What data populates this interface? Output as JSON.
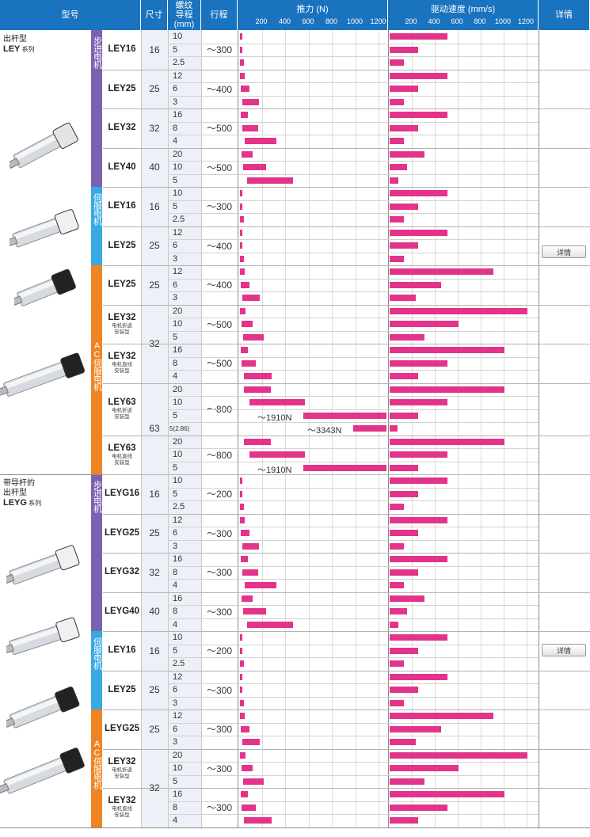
{
  "header": {
    "model": "型号",
    "size": "尺寸",
    "lead": "螺纹\n导程\n(mm)",
    "stroke": "行程",
    "force": "推力 (N)",
    "speed": "驱动速度 (mm/s)",
    "detail": "详情",
    "force_ticks": [
      "200",
      "400",
      "600",
      "800",
      "1000",
      "1200"
    ],
    "speed_ticks": [
      "200",
      "400",
      "600",
      "800",
      "1000",
      "1200"
    ]
  },
  "series": [
    {
      "name_line1": "出杆型",
      "name_line2": "LEY",
      "name_suffix": "系列"
    },
    {
      "name_line1": "带导杆的",
      "name_line1b": "出杆型",
      "name_line2": "LEYG",
      "name_suffix": "系列"
    }
  ],
  "bands": [
    "步进电机",
    "伺服电机",
    "AC伺服电机",
    "步进电机",
    "伺服电机",
    "AC伺服电机"
  ],
  "detail_button": "详情",
  "colors": {
    "header": "#1a73bf",
    "stepper": "#7b62b1",
    "servo": "#38a9e2",
    "ac_servo": "#ef8423",
    "bar": "#e3338a"
  },
  "groups": [
    {
      "model": "LEY16",
      "sub": "",
      "size": "16",
      "stroke": "~300",
      "rows": [
        {
          "lead": "10",
          "force": 15,
          "speed": 500
        },
        {
          "lead": "5",
          "force": 30,
          "speed": 250
        },
        {
          "lead": "2.5",
          "force": 60,
          "speed": 125
        }
      ]
    },
    {
      "model": "LEY25",
      "sub": "",
      "size": "25",
      "stroke": "~400",
      "rows": [
        {
          "lead": "12",
          "force": 65,
          "speed": 500
        },
        {
          "lead": "6",
          "force": 125,
          "speed": 250
        },
        {
          "lead": "3",
          "force": 240,
          "speed": 125
        }
      ]
    },
    {
      "model": "LEY32",
      "sub": "",
      "size": "32",
      "stroke": "~500",
      "rows": [
        {
          "lead": "16",
          "force": 110,
          "speed": 500
        },
        {
          "lead": "8",
          "force": 230,
          "speed": 250
        },
        {
          "lead": "4",
          "force": 460,
          "speed": 125
        }
      ]
    },
    {
      "model": "LEY40",
      "sub": "",
      "size": "40",
      "stroke": "~500",
      "rows": [
        {
          "lead": "20",
          "force": 165,
          "speed": 300
        },
        {
          "lead": "10",
          "force": 330,
          "speed": 150
        },
        {
          "lead": "5",
          "force": 660,
          "speed": 75
        }
      ]
    },
    {
      "model": "LEY16",
      "sub": "",
      "size": "16",
      "stroke": "~300",
      "rows": [
        {
          "lead": "10",
          "force": 15,
          "speed": 500
        },
        {
          "lead": "5",
          "force": 30,
          "speed": 250
        },
        {
          "lead": "2.5",
          "force": 60,
          "speed": 125
        }
      ]
    },
    {
      "model": "LEY25",
      "sub": "",
      "size": "25",
      "stroke": "~400",
      "rows": [
        {
          "lead": "12",
          "force": 15,
          "speed": 500
        },
        {
          "lead": "6",
          "force": 30,
          "speed": 250
        },
        {
          "lead": "3",
          "force": 60,
          "speed": 125
        }
      ]
    },
    {
      "model": "LEY25",
      "sub": "",
      "size": "25",
      "stroke": "~400",
      "rows": [
        {
          "lead": "12",
          "force": 65,
          "speed": 900
        },
        {
          "lead": "6",
          "force": 130,
          "speed": 450
        },
        {
          "lead": "3",
          "force": 250,
          "speed": 225
        }
      ]
    },
    {
      "model": "LEY32",
      "sub": "电机折返\n安装型",
      "size": "32",
      "stroke": "~500",
      "rows": [
        {
          "lead": "20",
          "force": 80,
          "speed": 1200
        },
        {
          "lead": "10",
          "force": 160,
          "speed": 600
        },
        {
          "lead": "5",
          "force": 300,
          "speed": 300
        }
      ]
    },
    {
      "model": "LEY32",
      "sub": "电机直线\n安装型",
      "size": "",
      "stroke": "~500",
      "rows": [
        {
          "lead": "16",
          "force": 110,
          "speed": 1000
        },
        {
          "lead": "8",
          "force": 200,
          "speed": 500
        },
        {
          "lead": "4",
          "force": 400,
          "speed": 250
        }
      ]
    },
    {
      "model": "LEY63",
      "sub": "电机折返\n安装型",
      "size": "63",
      "stroke": "~800",
      "rows": [
        {
          "lead": "20",
          "force": 390,
          "speed": 1000
        },
        {
          "lead": "10",
          "force": 800,
          "speed": 500
        },
        {
          "lead": "5",
          "force": 1910,
          "speed": 250,
          "note": "~1910N"
        },
        {
          "lead": "5(2.86)",
          "force": 3343,
          "speed": 70,
          "note": "~3343N"
        }
      ]
    },
    {
      "model": "LEY63",
      "sub": "电机直线\n安装型",
      "size": "",
      "stroke": "~800",
      "rows": [
        {
          "lead": "20",
          "force": 390,
          "speed": 1000
        },
        {
          "lead": "10",
          "force": 800,
          "speed": 500
        },
        {
          "lead": "5",
          "force": 1910,
          "speed": 250,
          "note": "~1910N"
        }
      ]
    },
    {
      "model": "LEYG16",
      "sub": "",
      "size": "16",
      "stroke": "~200",
      "rows": [
        {
          "lead": "10",
          "force": 15,
          "speed": 500
        },
        {
          "lead": "5",
          "force": 30,
          "speed": 250
        },
        {
          "lead": "2.5",
          "force": 60,
          "speed": 125
        }
      ]
    },
    {
      "model": "LEYG25",
      "sub": "",
      "size": "25",
      "stroke": "~300",
      "rows": [
        {
          "lead": "12",
          "force": 65,
          "speed": 500
        },
        {
          "lead": "6",
          "force": 125,
          "speed": 250
        },
        {
          "lead": "3",
          "force": 240,
          "speed": 125
        }
      ]
    },
    {
      "model": "LEYG32",
      "sub": "",
      "size": "32",
      "stroke": "~300",
      "rows": [
        {
          "lead": "16",
          "force": 110,
          "speed": 500
        },
        {
          "lead": "8",
          "force": 230,
          "speed": 250
        },
        {
          "lead": "4",
          "force": 460,
          "speed": 125
        }
      ]
    },
    {
      "model": "LEYG40",
      "sub": "",
      "size": "40",
      "stroke": "~300",
      "rows": [
        {
          "lead": "16",
          "force": 165,
          "speed": 300
        },
        {
          "lead": "8",
          "force": 330,
          "speed": 150
        },
        {
          "lead": "4",
          "force": 660,
          "speed": 75
        }
      ]
    },
    {
      "model": "LEY16",
      "sub": "",
      "size": "16",
      "stroke": "~200",
      "rows": [
        {
          "lead": "10",
          "force": 15,
          "speed": 500
        },
        {
          "lead": "5",
          "force": 30,
          "speed": 250
        },
        {
          "lead": "2.5",
          "force": 60,
          "speed": 125
        }
      ]
    },
    {
      "model": "LEY25",
      "sub": "",
      "size": "25",
      "stroke": "~300",
      "rows": [
        {
          "lead": "12",
          "force": 15,
          "speed": 500
        },
        {
          "lead": "6",
          "force": 30,
          "speed": 250
        },
        {
          "lead": "3",
          "force": 60,
          "speed": 125
        }
      ]
    },
    {
      "model": "LEYG25",
      "sub": "",
      "size": "25",
      "stroke": "~300",
      "rows": [
        {
          "lead": "12",
          "force": 65,
          "speed": 900
        },
        {
          "lead": "6",
          "force": 130,
          "speed": 450
        },
        {
          "lead": "3",
          "force": 250,
          "speed": 225
        }
      ]
    },
    {
      "model": "LEY32",
      "sub": "电机折返\n安装型",
      "size": "32",
      "stroke": "~300",
      "rows": [
        {
          "lead": "20",
          "force": 80,
          "speed": 1200
        },
        {
          "lead": "10",
          "force": 160,
          "speed": 600
        },
        {
          "lead": "5",
          "force": 300,
          "speed": 300
        }
      ]
    },
    {
      "model": "LEY32",
      "sub": "电机直线\n安装型",
      "size": "",
      "stroke": "~300",
      "rows": [
        {
          "lead": "16",
          "force": 110,
          "speed": 1000
        },
        {
          "lead": "8",
          "force": 200,
          "speed": 500
        },
        {
          "lead": "4",
          "force": 400,
          "speed": 250
        }
      ]
    }
  ]
}
